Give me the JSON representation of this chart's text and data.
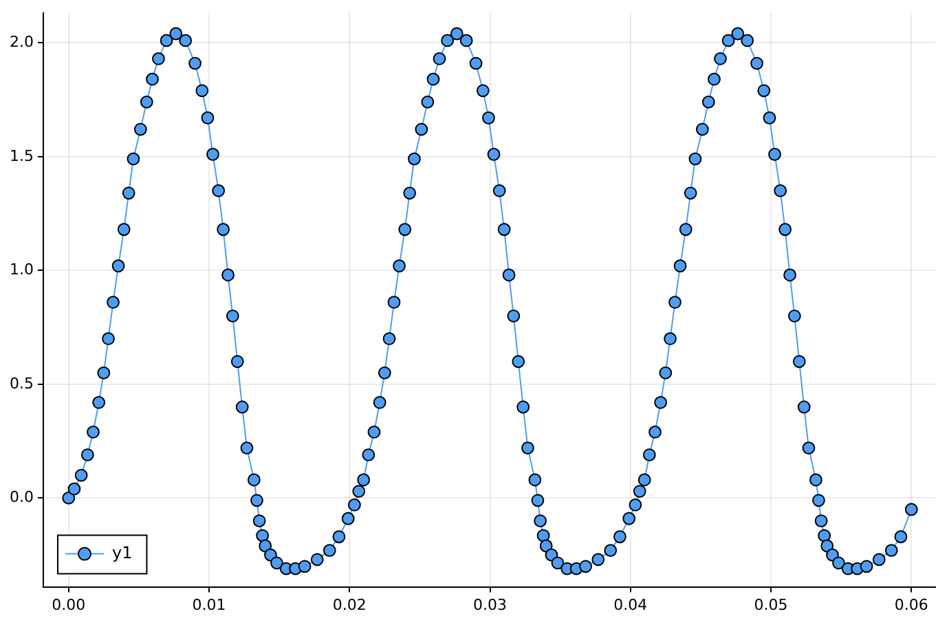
{
  "chart_data": {
    "type": "line",
    "marker": "circle",
    "line_style": "solid",
    "grid": true,
    "legend": "bottom left",
    "xlim": [
      -0.0018,
      0.0617
    ],
    "ylim": [
      -0.39,
      2.13
    ],
    "xticks": [
      {
        "value": 0,
        "label": "0.00"
      },
      {
        "value": 0.01,
        "label": "0.01"
      },
      {
        "value": 0.02,
        "label": "0.02"
      },
      {
        "value": 0.03,
        "label": "0.03"
      },
      {
        "value": 0.04,
        "label": "0.04"
      },
      {
        "value": 0.05,
        "label": "0.05"
      },
      {
        "value": 0.06,
        "label": "0.06"
      }
    ],
    "yticks": [
      {
        "value": 0,
        "label": "0.0"
      },
      {
        "value": 0.5,
        "label": "0.5"
      },
      {
        "value": 1,
        "label": "1.0"
      },
      {
        "value": 1.5,
        "label": "1.5"
      },
      {
        "value": 2,
        "label": "2.0"
      }
    ],
    "series": [
      {
        "name": "y1",
        "color": "#4f9df2",
        "x": [
          0,
          0.0004,
          0.0009,
          0.00135,
          0.00175,
          0.00215,
          0.0025,
          0.00283,
          0.00317,
          0.00354,
          0.00394,
          0.00428,
          0.00461,
          0.00512,
          0.00556,
          0.00596,
          0.0064,
          0.00697,
          0.00764,
          0.00832,
          0.009,
          0.0095,
          0.0099,
          0.01027,
          0.01067,
          0.01101,
          0.01135,
          0.01168,
          0.01202,
          0.01236,
          0.01269,
          0.0132,
          0.0134,
          0.01358,
          0.0138,
          0.014,
          0.01438,
          0.01482,
          0.01549,
          0.01615,
          0.01681,
          0.0177,
          0.01858,
          0.01925,
          0.0199,
          0.02035,
          0.02066,
          0.021,
          0.02135,
          0.02175,
          0.02215,
          0.0225,
          0.02283,
          0.02317,
          0.02354,
          0.02394,
          0.02428,
          0.02461,
          0.02512,
          0.02556,
          0.02596,
          0.0264,
          0.02697,
          0.02764,
          0.02832,
          0.029,
          0.0295,
          0.0299,
          0.03027,
          0.03067,
          0.03101,
          0.03135,
          0.03168,
          0.03202,
          0.03236,
          0.03269,
          0.0332,
          0.0334,
          0.03358,
          0.0338,
          0.034,
          0.03438,
          0.03482,
          0.03549,
          0.03615,
          0.03681,
          0.0377,
          0.03858,
          0.03925,
          0.0399,
          0.04035,
          0.04066,
          0.041,
          0.04135,
          0.04175,
          0.04215,
          0.0425,
          0.04283,
          0.04317,
          0.04354,
          0.04394,
          0.04428,
          0.04461,
          0.04512,
          0.04556,
          0.04596,
          0.0464,
          0.04697,
          0.04764,
          0.04832,
          0.049,
          0.0495,
          0.0499,
          0.05027,
          0.05067,
          0.05101,
          0.05135,
          0.05168,
          0.05202,
          0.05236,
          0.05269,
          0.0532,
          0.0534,
          0.05358,
          0.0538,
          0.054,
          0.05438,
          0.05482,
          0.05549,
          0.05615,
          0.05681,
          0.0577,
          0.05858,
          0.05925,
          0.06
        ],
        "values": [
          0,
          0.04,
          0.1,
          0.19,
          0.29,
          0.42,
          0.55,
          0.7,
          0.86,
          1.02,
          1.18,
          1.34,
          1.49,
          1.62,
          1.74,
          1.84,
          1.93,
          2.01,
          2.04,
          2.01,
          1.91,
          1.79,
          1.67,
          1.51,
          1.35,
          1.18,
          0.98,
          0.8,
          0.6,
          0.4,
          0.22,
          0.08,
          -0.01,
          -0.1,
          -0.165,
          -0.21,
          -0.25,
          -0.285,
          -0.31,
          -0.31,
          -0.3,
          -0.27,
          -0.23,
          -0.17,
          -0.09,
          -0.03,
          0.03,
          0.08,
          0.19,
          0.29,
          0.42,
          0.55,
          0.7,
          0.86,
          1.02,
          1.18,
          1.34,
          1.49,
          1.62,
          1.74,
          1.84,
          1.93,
          2.01,
          2.04,
          2.01,
          1.91,
          1.79,
          1.67,
          1.51,
          1.35,
          1.18,
          0.98,
          0.8,
          0.6,
          0.4,
          0.22,
          0.08,
          -0.01,
          -0.1,
          -0.165,
          -0.21,
          -0.25,
          -0.285,
          -0.31,
          -0.31,
          -0.3,
          -0.27,
          -0.23,
          -0.17,
          -0.09,
          -0.03,
          0.03,
          0.08,
          0.19,
          0.29,
          0.42,
          0.55,
          0.7,
          0.86,
          1.02,
          1.18,
          1.34,
          1.49,
          1.62,
          1.74,
          1.84,
          1.93,
          2.01,
          2.04,
          2.01,
          1.91,
          1.79,
          1.67,
          1.51,
          1.35,
          1.18,
          0.98,
          0.8,
          0.6,
          0.4,
          0.22,
          0.08,
          -0.01,
          -0.1,
          -0.165,
          -0.21,
          -0.25,
          -0.285,
          -0.31,
          -0.31,
          -0.3,
          -0.27,
          -0.23,
          -0.17,
          -0.05
        ]
      }
    ]
  }
}
